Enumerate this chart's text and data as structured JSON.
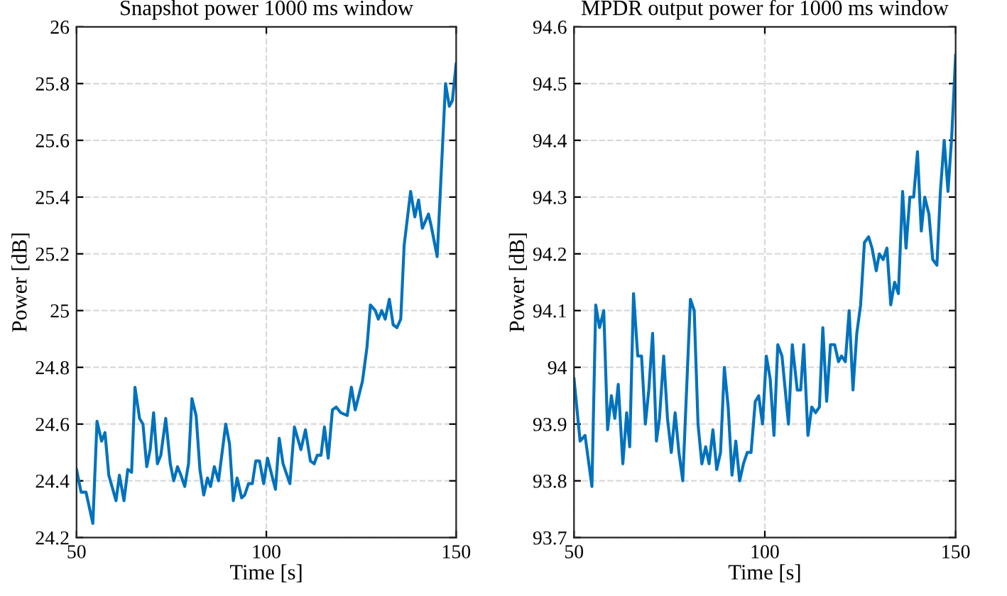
{
  "chart_data": [
    {
      "type": "line",
      "title": "Snapshot power 1000 ms window",
      "xlabel": "Time [s]",
      "ylabel": "Power [dB]",
      "xlim": [
        50,
        150
      ],
      "xticks": [
        50,
        100,
        150
      ],
      "ylim": [
        24.2,
        26
      ],
      "yticks": [
        24.2,
        24.4,
        24.6,
        24.8,
        25,
        25.2,
        25.4,
        25.6,
        25.8,
        26
      ],
      "grid": true,
      "line_style": "solid",
      "series": [
        {
          "color": "#0072bd",
          "x": [
            50,
            51.2,
            52.5,
            54.3,
            55.4,
            56.6,
            57.5,
            58.5,
            60.4,
            61.3,
            62.5,
            63.5,
            64.5,
            65.4,
            66.6,
            67.5,
            68.5,
            69.4,
            70.3,
            71.3,
            72.2,
            73.5,
            74.7,
            75.6,
            76.6,
            77.5,
            78.5,
            79.5,
            80.4,
            81.5,
            82.5,
            83.5,
            84.5,
            85.3,
            86.3,
            87.4,
            89.3,
            90.3,
            91.3,
            92.3,
            93.5,
            94.3,
            95.3,
            96.3,
            97.2,
            98.2,
            99.3,
            100.3,
            102.4,
            103.4,
            104.4,
            106.2,
            107.4,
            109.1,
            110.3,
            111.6,
            112.6,
            113.4,
            114.4,
            115.3,
            116.3,
            117.4,
            118.4,
            119.6,
            121.3,
            122.4,
            123.4,
            125.3,
            126.5,
            127.4,
            128.7,
            129.5,
            130.4,
            131.3,
            132.4,
            133.4,
            134.4,
            135.4,
            136.3,
            138.0,
            139.1,
            140.1,
            141.1,
            142.7,
            143.4,
            145.0,
            147.2,
            148.2,
            149.0,
            150
          ],
          "values": [
            24.44,
            24.36,
            24.36,
            24.25,
            24.61,
            24.54,
            24.57,
            24.42,
            24.33,
            24.42,
            24.33,
            24.44,
            24.43,
            24.73,
            24.62,
            24.6,
            24.45,
            24.51,
            24.64,
            24.46,
            24.49,
            24.62,
            24.46,
            24.4,
            24.45,
            24.42,
            24.38,
            24.46,
            24.69,
            24.63,
            24.44,
            24.35,
            24.41,
            24.38,
            24.45,
            24.4,
            24.6,
            24.53,
            24.33,
            24.41,
            24.34,
            24.35,
            24.39,
            24.39,
            24.47,
            24.47,
            24.39,
            24.48,
            24.37,
            24.55,
            24.46,
            24.39,
            24.59,
            24.51,
            24.58,
            24.47,
            24.46,
            24.49,
            24.49,
            24.59,
            24.48,
            24.65,
            24.66,
            24.64,
            24.63,
            24.73,
            24.65,
            24.75,
            24.87,
            25.02,
            25.0,
            24.97,
            25.0,
            24.97,
            25.04,
            24.95,
            24.94,
            24.97,
            25.23,
            25.42,
            25.33,
            25.39,
            25.29,
            25.34,
            25.3,
            25.19,
            25.8,
            25.72,
            25.74,
            25.87
          ]
        }
      ]
    },
    {
      "type": "line",
      "title": "MPDR output power for 1000 ms window",
      "xlabel": "Time [s]",
      "ylabel": "Power [dB]",
      "xlim": [
        50,
        150
      ],
      "xticks": [
        50,
        100,
        150
      ],
      "ylim": [
        93.7,
        94.6
      ],
      "yticks": [
        93.7,
        93.8,
        93.9,
        94,
        94.1,
        94.2,
        94.3,
        94.4,
        94.5,
        94.6
      ],
      "grid": true,
      "line_style": "solid",
      "series": [
        {
          "color": "#0072bd",
          "x": [
            50,
            51.6,
            52.9,
            54.7,
            55.7,
            56.7,
            57.8,
            58.8,
            59.8,
            60.7,
            61.6,
            62.8,
            63.8,
            64.6,
            65.6,
            66.7,
            67.7,
            68.7,
            69.6,
            70.6,
            71.6,
            72.4,
            73.5,
            74.5,
            75.5,
            76.5,
            77.5,
            78.5,
            80.5,
            81.5,
            82.5,
            83.5,
            84.5,
            85.4,
            86.4,
            87.4,
            88.4,
            89.4,
            90.4,
            91.4,
            92.4,
            93.4,
            94.4,
            95.4,
            96.4,
            97.5,
            98.4,
            99.4,
            100.4,
            101.4,
            102.4,
            103.4,
            104.5,
            106.2,
            107.2,
            108.5,
            109.4,
            110.2,
            111.3,
            112.3,
            113.3,
            114.3,
            115.2,
            116.2,
            117.2,
            118.3,
            119.3,
            120.1,
            121.1,
            122.1,
            123.1,
            124.1,
            125.1,
            126.1,
            127.2,
            128.1,
            129.2,
            130.0,
            131.0,
            132.0,
            133.0,
            134.0,
            135.0,
            136.1,
            137.0,
            138.0,
            139.0,
            140.0,
            141.0,
            141.9,
            143.0,
            144.0,
            145.1,
            146.0,
            147.0,
            148.0,
            149.0,
            150
          ],
          "values": [
            93.98,
            93.87,
            93.88,
            93.79,
            94.11,
            94.07,
            94.1,
            93.89,
            93.95,
            93.91,
            93.97,
            93.83,
            93.92,
            93.86,
            94.13,
            94.02,
            94.02,
            93.9,
            93.96,
            94.06,
            93.87,
            93.91,
            94.02,
            93.91,
            93.85,
            93.92,
            93.85,
            93.8,
            94.12,
            94.1,
            93.9,
            93.83,
            93.86,
            93.83,
            93.89,
            93.82,
            93.85,
            94.0,
            93.93,
            93.81,
            93.87,
            93.8,
            93.83,
            93.85,
            93.85,
            93.94,
            93.95,
            93.9,
            94.02,
            93.98,
            93.88,
            94.04,
            94.02,
            93.9,
            94.04,
            93.96,
            93.96,
            94.04,
            93.88,
            93.93,
            93.92,
            93.93,
            94.07,
            93.94,
            94.04,
            94.04,
            94.01,
            94.02,
            94.01,
            94.1,
            93.96,
            94.06,
            94.11,
            94.22,
            94.23,
            94.21,
            94.17,
            94.2,
            94.19,
            94.21,
            94.11,
            94.15,
            94.13,
            94.31,
            94.21,
            94.3,
            94.3,
            94.38,
            94.24,
            94.3,
            94.27,
            94.19,
            94.18,
            94.31,
            94.4,
            94.31,
            94.41,
            94.55
          ]
        }
      ]
    }
  ]
}
